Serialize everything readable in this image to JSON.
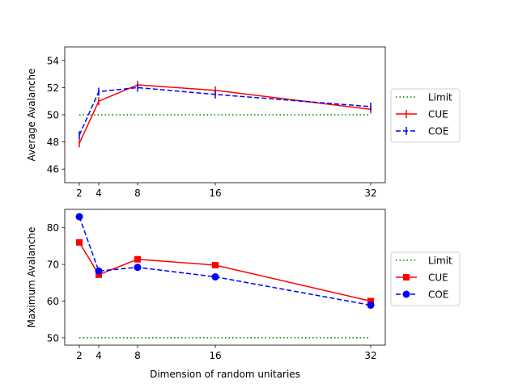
{
  "chart_data": [
    {
      "type": "line",
      "ylabel": "Average Avalanche",
      "xlabel": "",
      "x": [
        2,
        4,
        8,
        16,
        32
      ],
      "xticks": [
        "2",
        "4",
        "8",
        "16",
        "32"
      ],
      "xlim": [
        0.5,
        33.5
      ],
      "ylim": [
        45,
        55
      ],
      "yticks": [
        "46",
        "48",
        "50",
        "52",
        "54"
      ],
      "ytick_values": [
        46,
        48,
        50,
        52,
        54
      ],
      "grid": false,
      "legend_position": "right",
      "series": [
        {
          "name": "Limit",
          "values": [
            50,
            50,
            50,
            50,
            50
          ],
          "color": "#008000",
          "style": "dotted",
          "marker": "none"
        },
        {
          "name": "CUE",
          "values": [
            47.9,
            51.0,
            52.2,
            51.8,
            50.4
          ],
          "color": "#ff0000",
          "style": "solid",
          "marker": "errorbar"
        },
        {
          "name": "COE",
          "values": [
            48.5,
            51.7,
            52.0,
            51.5,
            50.6
          ],
          "color": "#0000ff",
          "style": "dashed",
          "marker": "errorbar"
        }
      ]
    },
    {
      "type": "line",
      "ylabel": "Maximum Avalanche",
      "xlabel": "Dimension of random unitaries",
      "x": [
        2,
        4,
        8,
        16,
        32
      ],
      "xticks": [
        "2",
        "4",
        "8",
        "16",
        "32"
      ],
      "xlim": [
        0.5,
        33.5
      ],
      "ylim": [
        48,
        85
      ],
      "yticks": [
        "50",
        "60",
        "70",
        "80"
      ],
      "ytick_values": [
        50,
        60,
        70,
        80
      ],
      "grid": false,
      "legend_position": "right",
      "series": [
        {
          "name": "Limit",
          "values": [
            50,
            50,
            50,
            50,
            50
          ],
          "color": "#008000",
          "style": "dotted",
          "marker": "none"
        },
        {
          "name": "CUE",
          "values": [
            76,
            67.2,
            71.4,
            69.8,
            60
          ],
          "color": "#ff0000",
          "style": "solid",
          "marker": "square"
        },
        {
          "name": "COE",
          "values": [
            83,
            68.2,
            69.2,
            66.6,
            58.9
          ],
          "color": "#0000ff",
          "style": "dashed",
          "marker": "circle"
        }
      ]
    }
  ]
}
